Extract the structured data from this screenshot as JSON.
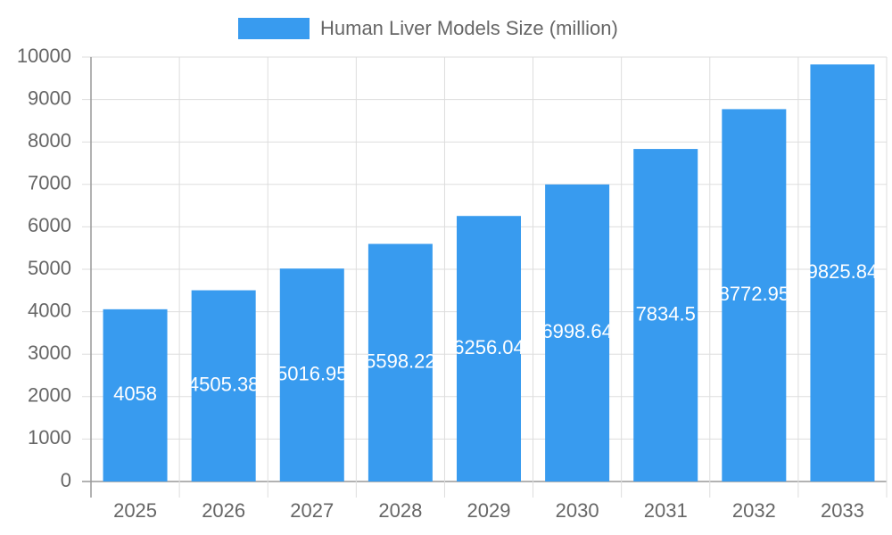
{
  "chart_data": {
    "type": "bar",
    "categories": [
      "2025",
      "2026",
      "2027",
      "2028",
      "2029",
      "2030",
      "2031",
      "2032",
      "2033"
    ],
    "series": [
      {
        "name": "Human Liver Models Size (million)",
        "color": "#389bef",
        "values": [
          4058,
          4505.38,
          5016.95,
          5598.22,
          6256.04,
          6998.64,
          7834.5,
          8772.95,
          9825.84
        ]
      }
    ],
    "ylim": [
      0,
      10000
    ],
    "yticks": [
      0,
      1000,
      2000,
      3000,
      4000,
      5000,
      6000,
      7000,
      8000,
      9000,
      10000
    ],
    "grid": true,
    "legend": "top"
  }
}
